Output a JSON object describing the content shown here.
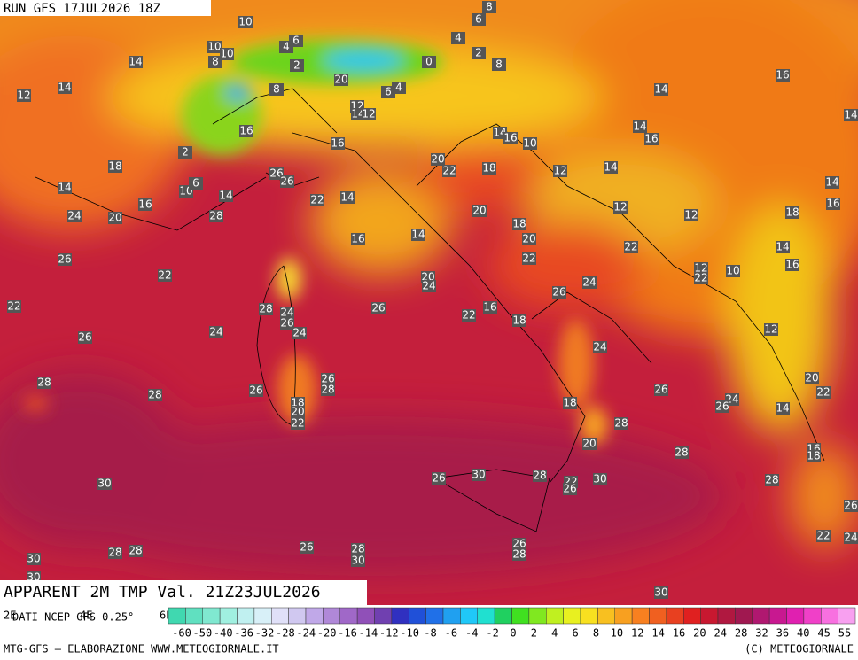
{
  "header": {
    "run": "RUN GFS 17JUL2026 18Z",
    "title": "APPARENT 2M TMP Val. 21Z23JUL2026",
    "source": "DATI NCEP GFS 0.25°",
    "lon_labels": [
      "2E",
      "4E",
      "6E"
    ]
  },
  "colorbar": {
    "labels": [
      "-60",
      "-50",
      "-40",
      "-36",
      "-32",
      "-28",
      "-24",
      "-20",
      "-16",
      "-14",
      "-12",
      "-10",
      "-8",
      "-6",
      "-4",
      "-2",
      "0",
      "2",
      "4",
      "6",
      "8",
      "10",
      "12",
      "14",
      "16",
      "20",
      "24",
      "28",
      "32",
      "36",
      "40",
      "45",
      "55"
    ]
  },
  "footer": {
    "left": "MTG-GFS – ELABORAZIONE WWW.METEOGIORNALE.IT",
    "right": "(C) METEOGIORNALE"
  },
  "map": {
    "labels": [
      10,
      6,
      8,
      6,
      4,
      4,
      10,
      10,
      8,
      14,
      2,
      0,
      2,
      8,
      12,
      14,
      20,
      8,
      6,
      4,
      12,
      14,
      12,
      14,
      16,
      16,
      16,
      14,
      16,
      10,
      14,
      16,
      14,
      18,
      2,
      20,
      22,
      18,
      12,
      14,
      14,
      26,
      26,
      10,
      6,
      14,
      22,
      14,
      14,
      24,
      20,
      16,
      28,
      20,
      12,
      12,
      18,
      16,
      18,
      14,
      16,
      20,
      22,
      14,
      26,
      22,
      12,
      10,
      16,
      22,
      22,
      20,
      24,
      24,
      26,
      22,
      28,
      24,
      26,
      22,
      16,
      18,
      26,
      24,
      26,
      24,
      12,
      24,
      28,
      28,
      26,
      26,
      28,
      26,
      24,
      26,
      20,
      22,
      18,
      20,
      22,
      18,
      14,
      28,
      20,
      16,
      18,
      28,
      30,
      26,
      30,
      28,
      22,
      26,
      30,
      28,
      26,
      22,
      24,
      26,
      28,
      30,
      26,
      28,
      30,
      28,
      28,
      30,
      30
    ]
  }
}
